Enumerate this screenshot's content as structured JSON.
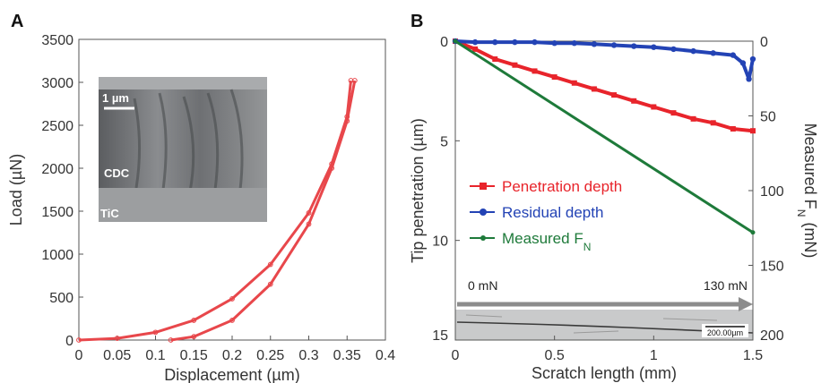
{
  "chart_data": [
    {
      "panel": "A",
      "type": "line",
      "xlabel": "Displacement (µm)",
      "ylabel": "Load (µN)",
      "xlim": [
        0,
        0.4
      ],
      "ylim": [
        0,
        3500
      ],
      "x_ticks": [
        "0",
        "0.05",
        "0.1",
        "0.15",
        "0.2",
        "0.25",
        "0.3",
        "0.35",
        "0.4"
      ],
      "y_ticks": [
        "0",
        "500",
        "1000",
        "1500",
        "2000",
        "2500",
        "3000",
        "3500"
      ],
      "grid": false,
      "series": [
        {
          "color": "#e8474b",
          "loading": [
            [
              0,
              0
            ],
            [
              0.05,
              20
            ],
            [
              0.1,
              90
            ],
            [
              0.15,
              230
            ],
            [
              0.2,
              480
            ],
            [
              0.25,
              880
            ],
            [
              0.3,
              1480
            ],
            [
              0.33,
              2050
            ],
            [
              0.35,
              2600
            ],
            [
              0.355,
              3020
            ]
          ],
          "unloading": [
            [
              0.36,
              3020
            ],
            [
              0.35,
              2550
            ],
            [
              0.33,
              2000
            ],
            [
              0.3,
              1350
            ],
            [
              0.25,
              650
            ],
            [
              0.2,
              230
            ],
            [
              0.15,
              40
            ],
            [
              0.12,
              0
            ]
          ]
        }
      ],
      "inset": {
        "scale_bar": "1 µm",
        "labels": [
          "CDC",
          "TiC"
        ]
      }
    },
    {
      "panel": "B",
      "type": "line",
      "xlabel": "Scratch length (mm)",
      "ylabel": "Tip penetration (µm)",
      "y2label_main": "Measured F",
      "y2label_sub": "N",
      "y2label_unit": "(mN)",
      "xlim": [
        0,
        1.5
      ],
      "ylim": [
        0,
        15
      ],
      "y_inverted": true,
      "y2lim": [
        0,
        200
      ],
      "x_ticks": [
        "0",
        "0.5",
        "1",
        "1.5"
      ],
      "y_ticks": [
        "0",
        "5",
        "10",
        "15"
      ],
      "y2_ticks": [
        "0",
        "50",
        "100",
        "150",
        "200"
      ],
      "grid": false,
      "series": [
        {
          "name": "Penetration depth",
          "color": "#e8242b",
          "axis": "left",
          "points": [
            [
              0,
              0
            ],
            [
              0.1,
              0.4
            ],
            [
              0.2,
              0.9
            ],
            [
              0.3,
              1.2
            ],
            [
              0.4,
              1.5
            ],
            [
              0.5,
              1.8
            ],
            [
              0.6,
              2.1
            ],
            [
              0.7,
              2.4
            ],
            [
              0.8,
              2.7
            ],
            [
              0.9,
              3.0
            ],
            [
              1.0,
              3.3
            ],
            [
              1.1,
              3.6
            ],
            [
              1.2,
              3.9
            ],
            [
              1.3,
              4.1
            ],
            [
              1.4,
              4.4
            ],
            [
              1.5,
              4.5
            ]
          ]
        },
        {
          "name": "Residual depth",
          "color": "#2343b5",
          "axis": "left",
          "points": [
            [
              0,
              0
            ],
            [
              0.1,
              0.05
            ],
            [
              0.2,
              0.05
            ],
            [
              0.3,
              0.05
            ],
            [
              0.4,
              0.05
            ],
            [
              0.5,
              0.1
            ],
            [
              0.6,
              0.1
            ],
            [
              0.7,
              0.15
            ],
            [
              0.8,
              0.2
            ],
            [
              0.9,
              0.25
            ],
            [
              1.0,
              0.3
            ],
            [
              1.1,
              0.4
            ],
            [
              1.2,
              0.5
            ],
            [
              1.3,
              0.6
            ],
            [
              1.4,
              0.7
            ],
            [
              1.45,
              1.1
            ],
            [
              1.48,
              1.9
            ],
            [
              1.5,
              0.9
            ]
          ]
        },
        {
          "name": "Measured F",
          "name_sub": "N",
          "color": "#1e7a3a",
          "axis": "right",
          "points": [
            [
              0,
              0
            ],
            [
              1.5,
              128
            ]
          ]
        }
      ],
      "arrow": {
        "start_label": "0 mN",
        "end_label": "130 mN"
      },
      "micrograph_scale": "200.00µm",
      "legend_placement": "center-left"
    }
  ]
}
